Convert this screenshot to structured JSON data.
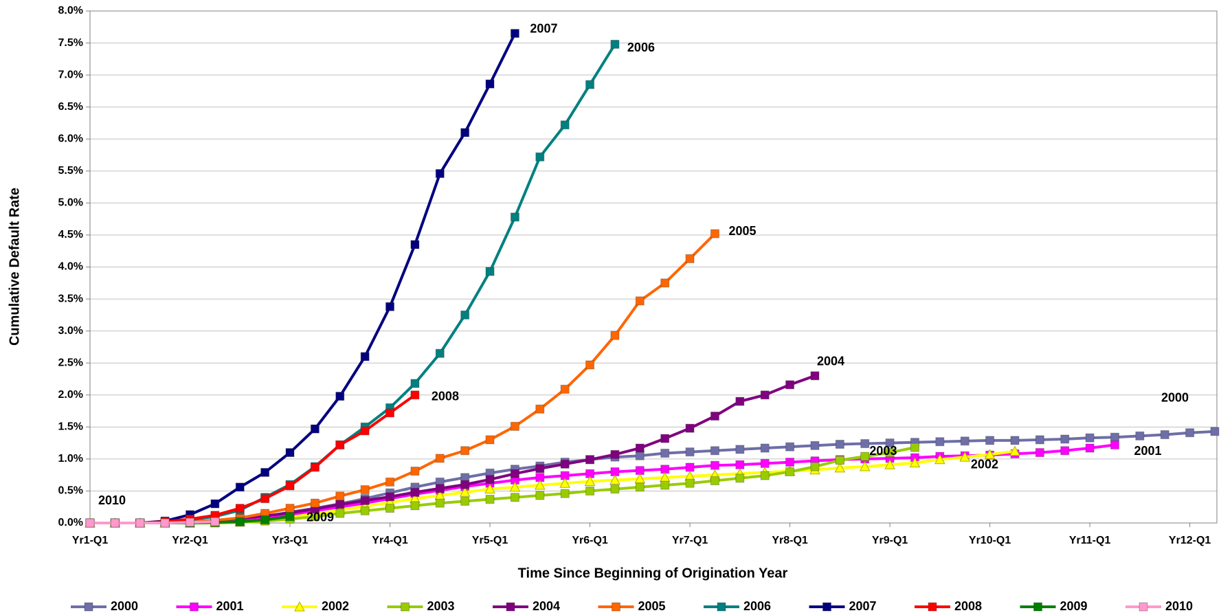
{
  "chart_data": {
    "type": "line",
    "x_label": "Time Since Beginning of Origination Year",
    "y_label": "Cumulative Default Rate",
    "categories": [
      "Yr1-Q1",
      null,
      null,
      null,
      "Yr2-Q1",
      null,
      null,
      null,
      "Yr3-Q1",
      null,
      null,
      null,
      "Yr4-Q1",
      null,
      null,
      null,
      "Yr5-Q1",
      null,
      null,
      null,
      "Yr6-Q1",
      null,
      null,
      null,
      "Yr7-Q1",
      null,
      null,
      null,
      "Yr8-Q1",
      null,
      null,
      null,
      "Yr9-Q1",
      null,
      null,
      null,
      "Yr10-Q1",
      null,
      null,
      null,
      "Yr11-Q1",
      null,
      null,
      null,
      "Yr12-Q1",
      null
    ],
    "ylim": [
      0,
      8
    ],
    "yticks": [
      {
        "value": 0,
        "label": "0.0%"
      },
      {
        "value": 0.5,
        "label": "0.5%"
      },
      {
        "value": 1,
        "label": "1.0%"
      },
      {
        "value": 1.5,
        "label": "1.5%"
      },
      {
        "value": 2,
        "label": "2.0%"
      },
      {
        "value": 2.5,
        "label": "2.5%"
      },
      {
        "value": 3,
        "label": "3.0%"
      },
      {
        "value": 3.5,
        "label": "3.5%"
      },
      {
        "value": 4,
        "label": "4.0%"
      },
      {
        "value": 4.5,
        "label": "4.5%"
      },
      {
        "value": 5,
        "label": "5.0%"
      },
      {
        "value": 5.5,
        "label": "5.5%"
      },
      {
        "value": 6,
        "label": "6.0%"
      },
      {
        "value": 6.5,
        "label": "6.5%"
      },
      {
        "value": 7,
        "label": "7.0%"
      },
      {
        "value": 7.5,
        "label": "7.5%"
      },
      {
        "value": 8,
        "label": "8.0%"
      }
    ],
    "grid": true,
    "legend": "bottom",
    "series": [
      {
        "name": "2000",
        "color": "#6E6EA8",
        "label_color": "#6E6EA8",
        "marker": "square",
        "values": [
          0,
          0,
          0,
          0,
          0.01,
          0.02,
          0.05,
          0.1,
          0.17,
          0.23,
          0.3,
          0.38,
          0.47,
          0.56,
          0.64,
          0.71,
          0.78,
          0.84,
          0.89,
          0.95,
          0.99,
          1.03,
          1.05,
          1.09,
          1.11,
          1.13,
          1.15,
          1.17,
          1.19,
          1.21,
          1.23,
          1.24,
          1.25,
          1.26,
          1.27,
          1.28,
          1.29,
          1.29,
          1.3,
          1.31,
          1.33,
          1.34,
          1.36,
          1.38,
          1.41,
          1.43
        ]
      },
      {
        "name": "2001",
        "color": "#FF00FF",
        "label_color": "#FF00FF",
        "marker": "square",
        "values": [
          0,
          0,
          0,
          0,
          0.01,
          0.02,
          0.04,
          0.08,
          0.13,
          0.19,
          0.25,
          0.31,
          0.38,
          0.45,
          0.51,
          0.57,
          0.62,
          0.67,
          0.71,
          0.74,
          0.77,
          0.8,
          0.82,
          0.84,
          0.87,
          0.9,
          0.91,
          0.93,
          0.95,
          0.97,
          0.99,
          1.0,
          1.01,
          1.02,
          1.04,
          1.05,
          1.06,
          1.08,
          1.1,
          1.13,
          1.17,
          1.22,
          null,
          null,
          null,
          null
        ]
      },
      {
        "name": "2002",
        "color": "#FFFF00",
        "label_color": "#000000",
        "marker": "triangle",
        "values": [
          0,
          0,
          0,
          0,
          0,
          0.01,
          0.02,
          0.05,
          0.09,
          0.14,
          0.2,
          0.26,
          0.32,
          0.38,
          0.43,
          0.48,
          0.53,
          0.56,
          0.59,
          0.62,
          0.65,
          0.67,
          0.69,
          0.71,
          0.73,
          0.75,
          0.77,
          0.79,
          0.81,
          0.83,
          0.86,
          0.88,
          0.91,
          0.94,
          0.99,
          1.03,
          1.07,
          1.12,
          null,
          null,
          null,
          null,
          null,
          null,
          null,
          null
        ]
      },
      {
        "name": "2003",
        "color": "#99CC00",
        "label_color": "#000000",
        "marker": "square",
        "values": [
          0,
          0,
          0,
          0,
          0,
          0,
          0.01,
          0.03,
          0.06,
          0.1,
          0.15,
          0.19,
          0.23,
          0.27,
          0.31,
          0.34,
          0.37,
          0.4,
          0.43,
          0.46,
          0.5,
          0.53,
          0.56,
          0.59,
          0.62,
          0.66,
          0.7,
          0.74,
          0.8,
          0.88,
          0.98,
          1.04,
          1.1,
          1.18,
          null,
          null,
          null,
          null,
          null,
          null,
          null,
          null,
          null,
          null,
          null,
          null
        ]
      },
      {
        "name": "2004",
        "color": "#800080",
        "label_color": "#800080",
        "marker": "square",
        "values": [
          0,
          0,
          0,
          0,
          0.02,
          0.04,
          0.07,
          0.11,
          0.16,
          0.22,
          0.29,
          0.35,
          0.41,
          0.48,
          0.54,
          0.6,
          0.68,
          0.77,
          0.85,
          0.92,
          0.99,
          1.07,
          1.17,
          1.32,
          1.48,
          1.67,
          1.9,
          2.0,
          2.16,
          2.3,
          null,
          null,
          null,
          null,
          null,
          null,
          null,
          null,
          null,
          null,
          null,
          null,
          null,
          null,
          null,
          null
        ]
      },
      {
        "name": "2005",
        "color": "#FF6600",
        "label_color": "#FF6600",
        "marker": "square",
        "values": [
          0,
          0,
          0,
          0,
          0.02,
          0.04,
          0.08,
          0.15,
          0.23,
          0.31,
          0.42,
          0.52,
          0.64,
          0.81,
          1.01,
          1.13,
          1.3,
          1.51,
          1.78,
          2.09,
          2.47,
          2.93,
          3.47,
          3.75,
          4.13,
          4.52,
          null,
          null,
          null,
          null,
          null,
          null,
          null,
          null,
          null,
          null,
          null,
          null,
          null,
          null,
          null,
          null,
          null,
          null,
          null,
          null
        ]
      },
      {
        "name": "2006",
        "color": "#008080",
        "label_color": "#008080",
        "marker": "square",
        "values": [
          0,
          0,
          0,
          0.02,
          0.05,
          0.1,
          0.2,
          0.4,
          0.6,
          0.88,
          1.22,
          1.5,
          1.8,
          2.18,
          2.65,
          3.25,
          3.93,
          4.78,
          5.72,
          6.22,
          6.85,
          7.48,
          null,
          null,
          null,
          null,
          null,
          null,
          null,
          null,
          null,
          null,
          null,
          null,
          null,
          null,
          null,
          null,
          null,
          null,
          null,
          null,
          null,
          null,
          null,
          null
        ]
      },
      {
        "name": "2007",
        "color": "#000080",
        "label_color": "#000080",
        "marker": "square",
        "values": [
          0,
          0,
          0,
          0.03,
          0.13,
          0.3,
          0.56,
          0.79,
          1.1,
          1.47,
          1.98,
          2.6,
          3.38,
          4.35,
          5.46,
          6.1,
          6.86,
          7.65,
          null,
          null,
          null,
          null,
          null,
          null,
          null,
          null,
          null,
          null,
          null,
          null,
          null,
          null,
          null,
          null,
          null,
          null,
          null,
          null,
          null,
          null,
          null,
          null,
          null,
          null,
          null,
          null
        ]
      },
      {
        "name": "2008",
        "color": "#FF0000",
        "label_color": "#FF0000",
        "marker": "square",
        "values": [
          0,
          0,
          0,
          0.02,
          0.06,
          0.12,
          0.23,
          0.38,
          0.58,
          0.87,
          1.22,
          1.44,
          1.72,
          2.0,
          null,
          null,
          null,
          null,
          null,
          null,
          null,
          null,
          null,
          null,
          null,
          null,
          null,
          null,
          null,
          null,
          null,
          null,
          null,
          null,
          null,
          null,
          null,
          null,
          null,
          null,
          null,
          null,
          null,
          null,
          null,
          null
        ]
      },
      {
        "name": "2009",
        "color": "#008000",
        "label_color": "#000000",
        "marker": "square",
        "values": [
          0,
          0,
          0,
          0,
          0,
          0.01,
          0.02,
          0.05,
          0.1,
          null,
          null,
          null,
          null,
          null,
          null,
          null,
          null,
          null,
          null,
          null,
          null,
          null,
          null,
          null,
          null,
          null,
          null,
          null,
          null,
          null,
          null,
          null,
          null,
          null,
          null,
          null,
          null,
          null,
          null,
          null,
          null,
          null,
          null,
          null,
          null,
          null
        ]
      },
      {
        "name": "2010",
        "color": "#FF99CC",
        "label_color": "#FF99CC",
        "marker": "square",
        "values": [
          0,
          0,
          0,
          0,
          0.01,
          0.02,
          null,
          null,
          null,
          null,
          null,
          null,
          null,
          null,
          null,
          null,
          null,
          null,
          null,
          null,
          null,
          null,
          null,
          null,
          null,
          null,
          null,
          null,
          null,
          null,
          null,
          null,
          null,
          null,
          null,
          null,
          null,
          null,
          null,
          null,
          null,
          null,
          null,
          null,
          null,
          null
        ]
      }
    ]
  }
}
